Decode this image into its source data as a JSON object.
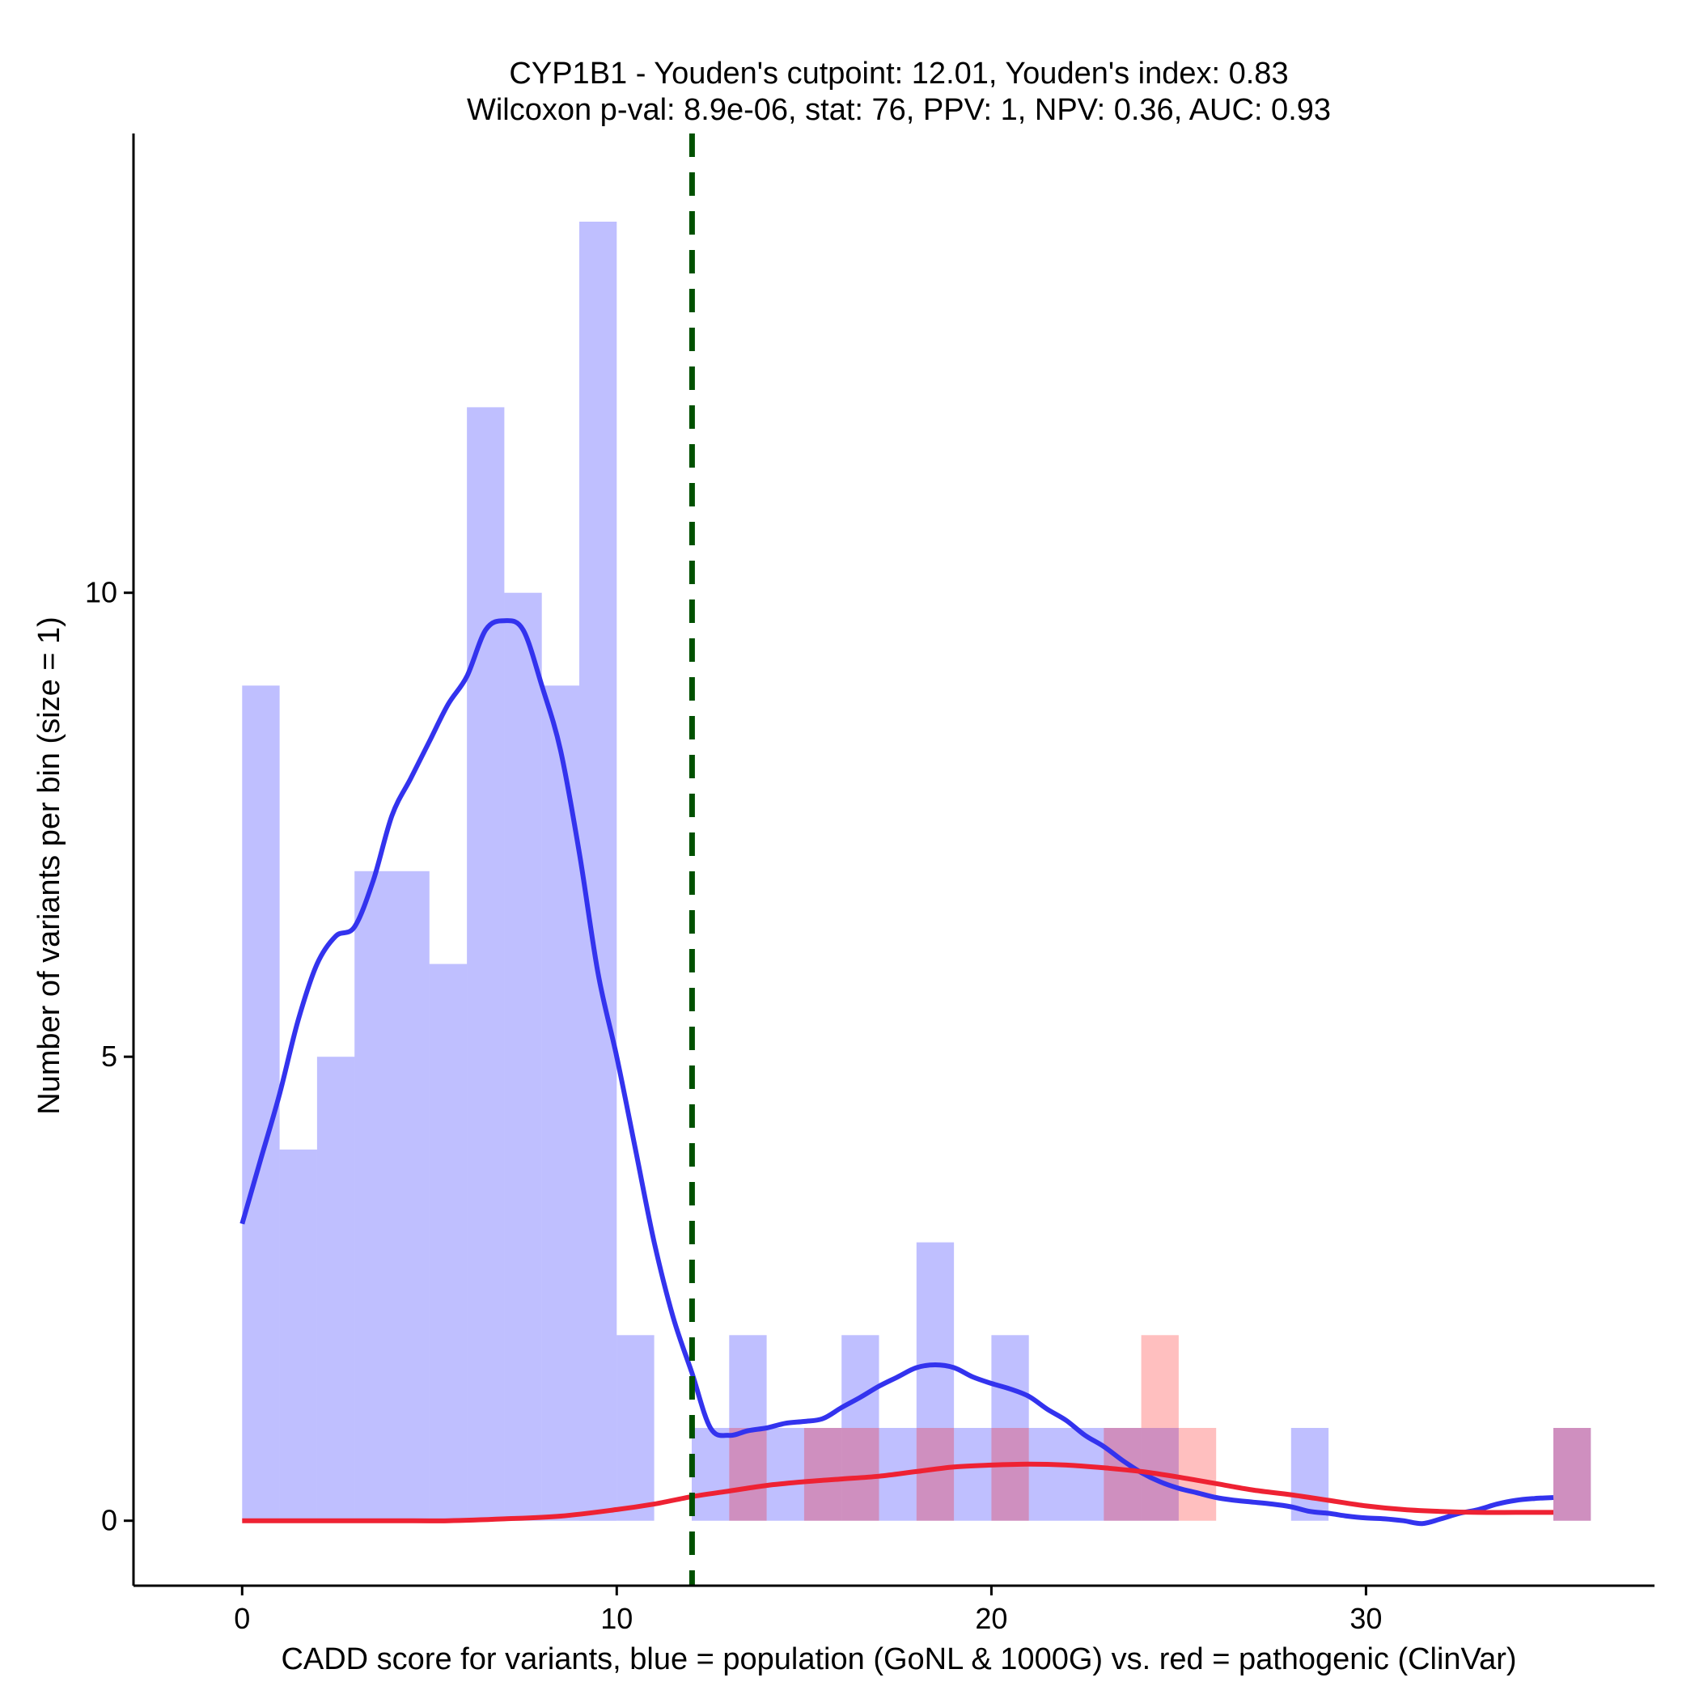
{
  "chart_data": {
    "type": "histogram",
    "title_line1": "CYP1B1 - Youden's cutpoint: 12.01, Youden's index: 0.83",
    "title_line2": "Wilcoxon p-val: 8.9e-06, stat: 76, PPV: 1, NPV: 0.36, AUC: 0.93",
    "xlabel": "CADD score for variants, blue = population (GoNL & 1000G) vs. red = pathogenic (ClinVar)",
    "ylabel": "Number of variants per bin (size = 1)",
    "xlim": [
      -2.9,
      37.7
    ],
    "ylim": [
      -0.7,
      14.95
    ],
    "x_ticks": [
      0,
      10,
      20,
      30
    ],
    "y_ticks": [
      0,
      5,
      10
    ],
    "bin_width": 1,
    "cutpoint": 12.01,
    "colors": {
      "population": "#0000ff",
      "pathogenic": "#ff0000",
      "cutpoint_line": "#005000",
      "population_curve": "#3333ee",
      "pathogenic_curve": "#ee2233"
    },
    "series": [
      {
        "name": "population (GoNL & 1000G)",
        "bins": [
          {
            "start": 0,
            "count": 9
          },
          {
            "start": 1,
            "count": 4
          },
          {
            "start": 2,
            "count": 5
          },
          {
            "start": 3,
            "count": 7
          },
          {
            "start": 4,
            "count": 7
          },
          {
            "start": 5,
            "count": 6
          },
          {
            "start": 6,
            "count": 12
          },
          {
            "start": 7,
            "count": 10
          },
          {
            "start": 8,
            "count": 9
          },
          {
            "start": 9,
            "count": 14
          },
          {
            "start": 10,
            "count": 2
          },
          {
            "start": 12,
            "count": 1
          },
          {
            "start": 13,
            "count": 2
          },
          {
            "start": 14,
            "count": 1
          },
          {
            "start": 15,
            "count": 1
          },
          {
            "start": 16,
            "count": 2
          },
          {
            "start": 17,
            "count": 1
          },
          {
            "start": 18,
            "count": 3
          },
          {
            "start": 19,
            "count": 1
          },
          {
            "start": 20,
            "count": 2
          },
          {
            "start": 21,
            "count": 1
          },
          {
            "start": 22,
            "count": 1
          },
          {
            "start": 23,
            "count": 1
          },
          {
            "start": 24,
            "count": 1
          },
          {
            "start": 28,
            "count": 1
          },
          {
            "start": 35,
            "count": 1
          }
        ],
        "density_curve": {
          "x": [
            0,
            0.5,
            1,
            1.5,
            2,
            2.5,
            3,
            3.5,
            4,
            4.5,
            5,
            5.5,
            6,
            6.5,
            7,
            7.5,
            8,
            8.5,
            9,
            9.5,
            10,
            10.5,
            11,
            11.5,
            12,
            12.5,
            13,
            13.5,
            14,
            14.5,
            15,
            15.5,
            16,
            16.5,
            17,
            17.5,
            18,
            18.5,
            19,
            19.5,
            20,
            20.5,
            21,
            21.5,
            22,
            22.5,
            23,
            23.5,
            24,
            24.5,
            25,
            25.5,
            26,
            26.5,
            27,
            27.5,
            28,
            28.5,
            29,
            29.5,
            30,
            30.5,
            31,
            31.5,
            32,
            32.5,
            33,
            33.5,
            34,
            34.5,
            35
          ],
          "y": [
            3.2,
            3.9,
            4.6,
            5.4,
            6.0,
            6.3,
            6.4,
            6.9,
            7.6,
            8.0,
            8.4,
            8.8,
            9.1,
            9.6,
            9.7,
            9.6,
            9.0,
            8.3,
            7.2,
            5.9,
            5.0,
            4.0,
            3.0,
            2.2,
            1.6,
            1.0,
            0.92,
            0.97,
            1.0,
            1.05,
            1.07,
            1.1,
            1.22,
            1.33,
            1.45,
            1.55,
            1.65,
            1.68,
            1.65,
            1.55,
            1.48,
            1.42,
            1.34,
            1.2,
            1.08,
            0.92,
            0.8,
            0.65,
            0.52,
            0.42,
            0.35,
            0.3,
            0.25,
            0.22,
            0.2,
            0.18,
            0.15,
            0.1,
            0.08,
            0.05,
            0.03,
            0.02,
            0.0,
            -0.03,
            0.02,
            0.08,
            0.12,
            0.18,
            0.22,
            0.24,
            0.25
          ]
        }
      },
      {
        "name": "pathogenic (ClinVar)",
        "bins": [
          {
            "start": 13,
            "count": 1
          },
          {
            "start": 15,
            "count": 1
          },
          {
            "start": 16,
            "count": 1
          },
          {
            "start": 18,
            "count": 1
          },
          {
            "start": 20,
            "count": 1
          },
          {
            "start": 23,
            "count": 1
          },
          {
            "start": 24,
            "count": 2
          },
          {
            "start": 25,
            "count": 1
          },
          {
            "start": 35,
            "count": 1
          }
        ],
        "density_curve": {
          "x": [
            0,
            2,
            4,
            5.5,
            7,
            8.5,
            10,
            11,
            12,
            13,
            14,
            15,
            16,
            17,
            18,
            19,
            20,
            21,
            22,
            23,
            24,
            25,
            26,
            27,
            28,
            29,
            30,
            31,
            32,
            33,
            34,
            35
          ],
          "y": [
            0.0,
            0.0,
            0.0,
            0.0,
            0.02,
            0.05,
            0.12,
            0.18,
            0.26,
            0.32,
            0.38,
            0.42,
            0.45,
            0.48,
            0.53,
            0.58,
            0.6,
            0.61,
            0.6,
            0.57,
            0.53,
            0.47,
            0.4,
            0.33,
            0.28,
            0.22,
            0.16,
            0.12,
            0.1,
            0.09,
            0.09,
            0.09
          ]
        }
      }
    ]
  }
}
